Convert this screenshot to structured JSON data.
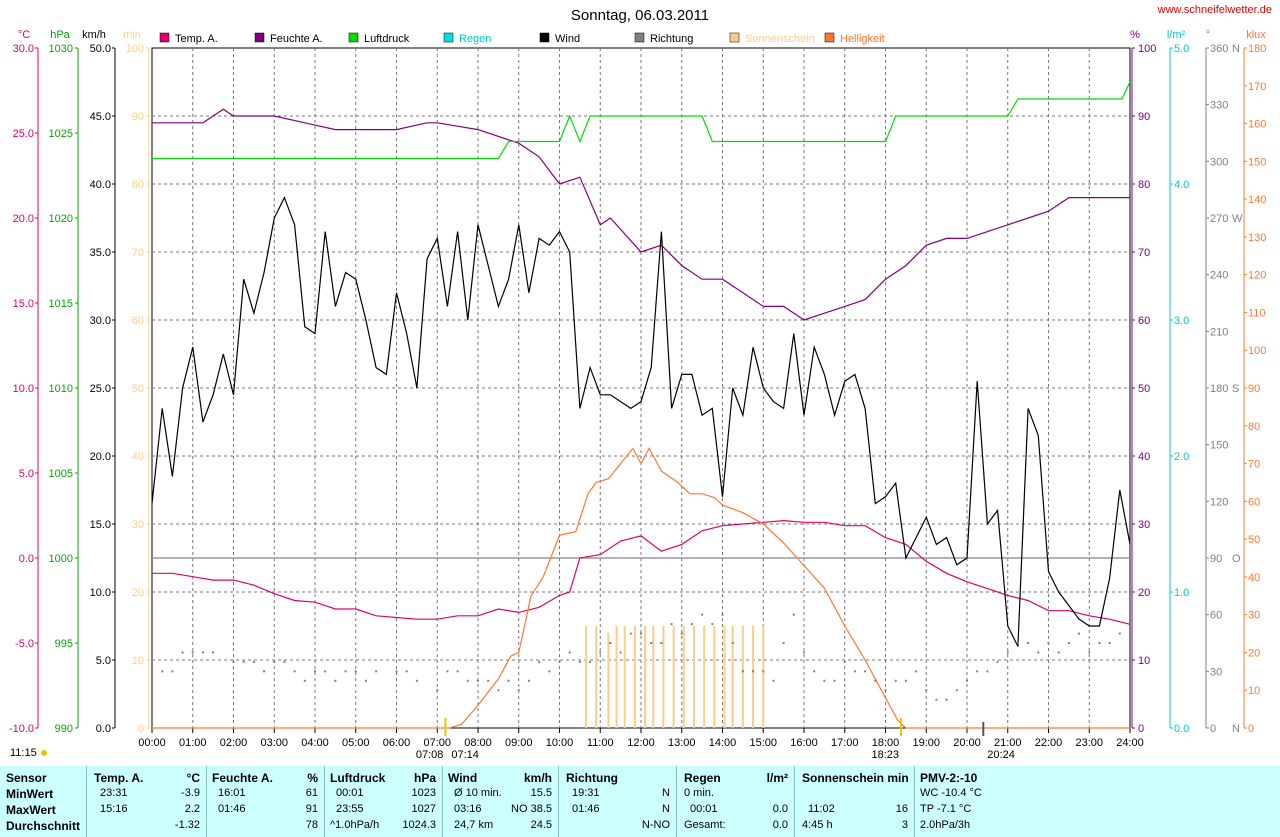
{
  "title": "Sonntag, 06.03.2011",
  "site": "www.schneifelwetter.de",
  "legend": [
    {
      "label": "Temp. A.",
      "color": "#e0006f"
    },
    {
      "label": "Feuchte A.",
      "color": "#800080"
    },
    {
      "label": "Luftdruck",
      "color": "#00dd00"
    },
    {
      "label": "Regen",
      "color": "#00e0e0"
    },
    {
      "label": "Wind",
      "color": "#000000"
    },
    {
      "label": "Richtung",
      "color": "#808080"
    },
    {
      "label": "Sonnenschein",
      "color": "#ffcc88"
    },
    {
      "label": "Helligkeit",
      "color": "#ff7733"
    }
  ],
  "axis_units": {
    "temp": "°C",
    "pressure": "hPa",
    "wind": "km/h",
    "sun": "min",
    "humidity": "%",
    "rain": "l/m²",
    "direction": "°",
    "brightness": "klux"
  },
  "direction_labels": {
    "0": "N",
    "90": "O",
    "180": "S",
    "270": "W",
    "360": "N"
  },
  "sunrise_label": "07:08",
  "sunrise_label2": "07:14",
  "sunset_label": "18:23",
  "moonset_label": "20:24",
  "moon_time_label": "11:15",
  "chart_data": {
    "type": "line",
    "x_ticks": [
      "00:00",
      "01:00",
      "02:00",
      "03:00",
      "04:00",
      "05:00",
      "06:00",
      "07:00",
      "08:00",
      "09:00",
      "10:00",
      "11:00",
      "12:00",
      "13:00",
      "14:00",
      "15:00",
      "16:00",
      "17:00",
      "18:00",
      "19:00",
      "20:00",
      "21:00",
      "22:00",
      "23:00",
      "24:00"
    ],
    "axes": {
      "temp": {
        "min": -10,
        "max": 30,
        "ticks": [
          -10.0,
          -5.0,
          0.0,
          5.0,
          10.0,
          15.0,
          20.0,
          25.0,
          30.0
        ],
        "color": "#e0006f"
      },
      "pressure": {
        "min": 990,
        "max": 1030,
        "ticks": [
          990,
          995,
          1000,
          1005,
          1010,
          1015,
          1020,
          1025,
          1030
        ],
        "color": "#00aa00"
      },
      "wind": {
        "min": 0,
        "max": 50,
        "ticks": [
          0.0,
          5.0,
          10.0,
          15.0,
          20.0,
          25.0,
          30.0,
          35.0,
          40.0,
          45.0,
          50.0
        ],
        "color": "#000000"
      },
      "sun": {
        "min": 0,
        "max": 100,
        "ticks": [
          0,
          10,
          20,
          30,
          40,
          50,
          60,
          70,
          80,
          90,
          100
        ],
        "color": "#ffcc88"
      },
      "humidity": {
        "min": 0,
        "max": 100,
        "ticks": [
          0,
          10,
          20,
          30,
          40,
          50,
          60,
          70,
          80,
          90,
          100
        ],
        "color": "#800080"
      },
      "rain": {
        "min": 0,
        "max": 5,
        "ticks": [
          0.0,
          1.0,
          2.0,
          3.0,
          4.0,
          5.0
        ],
        "color": "#00cccc"
      },
      "direction": {
        "min": 0,
        "max": 360,
        "ticks": [
          0,
          30,
          60,
          90,
          120,
          150,
          180,
          210,
          240,
          270,
          300,
          330,
          360
        ],
        "color": "#808080"
      },
      "brightness": {
        "min": 0,
        "max": 180,
        "ticks": [
          0,
          10,
          20,
          30,
          40,
          50,
          60,
          70,
          80,
          90,
          100,
          110,
          120,
          130,
          140,
          150,
          160,
          170,
          180
        ],
        "color": "#ff7733"
      }
    },
    "series": [
      {
        "name": "Temp. A.",
        "axis": "temp",
        "color": "#e0006f",
        "x": [
          0,
          0.5,
          1,
          1.5,
          2,
          2.5,
          3,
          3.5,
          4,
          4.5,
          5,
          5.5,
          6,
          6.5,
          7,
          7.5,
          8,
          8.5,
          9,
          9.5,
          10,
          10.25,
          10.5,
          11,
          11.5,
          12,
          12.5,
          13,
          13.5,
          14,
          14.5,
          15,
          15.5,
          16,
          16.5,
          17,
          17.5,
          18,
          18.5,
          19,
          19.5,
          20,
          20.5,
          21,
          21.5,
          22,
          22.5,
          23,
          23.5,
          24
        ],
        "y": [
          -0.9,
          -0.9,
          -1.1,
          -1.3,
          -1.3,
          -1.6,
          -2.1,
          -2.5,
          -2.6,
          -3.0,
          -3.0,
          -3.4,
          -3.5,
          -3.6,
          -3.6,
          -3.4,
          -3.4,
          -3.0,
          -3.2,
          -2.9,
          -2.2,
          -2.0,
          0.0,
          0.2,
          1.0,
          1.3,
          0.4,
          0.8,
          1.6,
          1.9,
          2.0,
          2.1,
          2.2,
          2.1,
          2.1,
          1.9,
          1.9,
          1.2,
          0.8,
          -0.2,
          -0.9,
          -1.4,
          -1.8,
          -2.2,
          -2.5,
          -3.1,
          -3.1,
          -3.4,
          -3.6,
          -3.9
        ]
      },
      {
        "name": "Feuchte A.",
        "axis": "humidity",
        "color": "#800080",
        "x": [
          0,
          1.25,
          1.75,
          2,
          3,
          3.75,
          4.5,
          5.5,
          6,
          6.75,
          7,
          8,
          9,
          9.5,
          10,
          10.5,
          11,
          11.25,
          12,
          12.5,
          13,
          13.5,
          14,
          14.5,
          15,
          15.5,
          16,
          16.5,
          17,
          17.5,
          18,
          18.5,
          19,
          19.5,
          20,
          21,
          22,
          22.5,
          23,
          24
        ],
        "y": [
          89,
          89,
          91,
          90,
          90,
          89,
          88,
          88,
          88,
          89,
          89,
          88,
          86,
          84,
          80,
          81,
          74,
          75,
          70,
          71,
          68,
          66,
          66,
          64,
          62,
          62,
          60,
          61,
          62,
          63,
          66,
          68,
          71,
          72,
          72,
          74,
          76,
          78,
          78,
          78
        ]
      },
      {
        "name": "Luftdruck",
        "axis": "pressure",
        "color": "#00dd00",
        "x": [
          0,
          8.5,
          8.75,
          10,
          10.25,
          10.5,
          10.75,
          13.5,
          13.75,
          18,
          18.25,
          21,
          21.25,
          23.8,
          24
        ],
        "y": [
          1023.5,
          1023.5,
          1024.5,
          1024.5,
          1026,
          1024.5,
          1026,
          1026,
          1024.5,
          1024.5,
          1026,
          1026,
          1027,
          1027,
          1028
        ]
      },
      {
        "name": "Wind",
        "axis": "wind",
        "color": "#000000",
        "x": [
          0,
          0.25,
          0.5,
          0.75,
          1,
          1.25,
          1.5,
          1.75,
          2,
          2.25,
          2.5,
          2.75,
          3,
          3.25,
          3.5,
          3.75,
          4,
          4.25,
          4.5,
          4.75,
          5,
          5.25,
          5.5,
          5.75,
          6,
          6.25,
          6.5,
          6.75,
          7,
          7.25,
          7.5,
          7.75,
          8,
          8.25,
          8.5,
          8.75,
          9,
          9.25,
          9.5,
          9.75,
          10,
          10.25,
          10.5,
          10.75,
          11,
          11.25,
          11.5,
          11.75,
          12,
          12.25,
          12.5,
          12.75,
          13,
          13.25,
          13.5,
          13.75,
          14,
          14.25,
          14.5,
          14.75,
          15,
          15.25,
          15.5,
          15.75,
          16,
          16.25,
          16.5,
          16.75,
          17,
          17.25,
          17.5,
          17.75,
          18,
          18.25,
          18.5,
          18.75,
          19,
          19.25,
          19.5,
          19.75,
          20,
          20.25,
          20.5,
          20.75,
          21,
          21.25,
          21.5,
          21.75,
          22,
          22.25,
          22.5,
          22.75,
          23,
          23.25,
          23.5,
          23.75,
          24
        ],
        "y": [
          16.5,
          23.5,
          18.5,
          25,
          28,
          22.5,
          24.5,
          27.5,
          24.5,
          33,
          30.5,
          33.5,
          37.5,
          39,
          37,
          29.5,
          29,
          36.5,
          31,
          33.5,
          33,
          30,
          26.5,
          26,
          32,
          29,
          25,
          34.5,
          36,
          31,
          36.5,
          30,
          37,
          34,
          31,
          33,
          37,
          32,
          36,
          35.5,
          36.5,
          35,
          23.5,
          26.5,
          24.5,
          24.5,
          24,
          23.5,
          24,
          26.5,
          36.5,
          23.5,
          26,
          26,
          23,
          23.5,
          17,
          25,
          23,
          28,
          25,
          24,
          23.5,
          29,
          23,
          28,
          26,
          23,
          25.5,
          26,
          23.5,
          16.5,
          17,
          18,
          12.5,
          14,
          15.5,
          13.5,
          14,
          12,
          12.5,
          25.5,
          15,
          16,
          7.5,
          6,
          23.5,
          21.5,
          11.5,
          10,
          9,
          8,
          7.5,
          7.5,
          11,
          17.5,
          13.5
        ]
      },
      {
        "name": "Helligkeit",
        "axis": "brightness",
        "color": "#ff7733",
        "x": [
          0,
          7.3,
          7.6,
          8,
          8.5,
          8.8,
          9,
          9.3,
          9.6,
          10,
          10.4,
          10.7,
          10.9,
          11.2,
          11.5,
          11.8,
          12,
          12.2,
          12.5,
          12.9,
          13.2,
          13.5,
          13.8,
          14,
          14.5,
          15,
          15.5,
          16,
          16.5,
          17,
          17.5,
          18,
          18.3,
          18.5,
          18.8,
          24
        ],
        "y": [
          0,
          0,
          1,
          6,
          13,
          19,
          20,
          35,
          40,
          51,
          52,
          62,
          65,
          66,
          70,
          74,
          70,
          74,
          68,
          65,
          62,
          62,
          61,
          59,
          57,
          54,
          49,
          43,
          37,
          27,
          18,
          8,
          2,
          0,
          0,
          0
        ]
      },
      {
        "name": "Sonnenschein",
        "axis": "sun",
        "color": "#ffcc88",
        "x": [
          10.65,
          10.9,
          11.2,
          11.4,
          11.6,
          11.85,
          12.1,
          12.3,
          12.55,
          12.8,
          13.05,
          13.3,
          13.55,
          13.8,
          14.05,
          14.25,
          14.5,
          14.75,
          15
        ],
        "y": [
          15,
          15,
          14,
          15,
          15,
          15,
          15,
          15,
          15,
          15,
          15,
          15,
          15,
          15,
          15,
          15,
          15,
          15,
          15
        ]
      },
      {
        "name": "Richtung",
        "axis": "direction",
        "color": "#808080",
        "x": [
          0.25,
          0.5,
          0.75,
          1,
          1.25,
          1.5,
          2,
          2.25,
          2.5,
          2.75,
          3,
          3.25,
          3.5,
          3.75,
          4,
          4.25,
          4.5,
          4.75,
          5,
          5.25,
          5.5,
          6,
          6.25,
          6.5,
          7,
          7.25,
          7.5,
          7.75,
          8,
          8.25,
          8.5,
          8.75,
          9,
          9.25,
          9.5,
          9.75,
          10,
          10.25,
          10.5,
          10.75,
          11,
          11.25,
          11.5,
          11.75,
          12,
          12.25,
          12.5,
          12.75,
          13,
          13.25,
          13.5,
          13.75,
          14,
          14.25,
          14.5,
          14.75,
          15,
          15.25,
          15.5,
          15.75,
          16,
          16.25,
          16.5,
          16.75,
          17,
          17.25,
          17.5,
          17.75,
          18,
          18.25,
          18.5,
          18.75,
          19,
          19.25,
          19.5,
          19.75,
          20,
          20.25,
          20.5,
          20.75,
          21,
          21.25,
          21.5,
          21.75,
          22,
          22.25,
          22.5,
          22.75,
          23,
          23.25,
          23.5,
          23.75,
          24
        ],
        "y": [
          30,
          30,
          40,
          40,
          40,
          40,
          35,
          35,
          35,
          30,
          35,
          35,
          30,
          25,
          30,
          30,
          25,
          30,
          30,
          25,
          30,
          30,
          30,
          25,
          20,
          30,
          30,
          25,
          25,
          25,
          20,
          25,
          20,
          25,
          35,
          30,
          35,
          40,
          35,
          35,
          40,
          45,
          40,
          50,
          50,
          45,
          45,
          55,
          50,
          55,
          60,
          55,
          60,
          45,
          30,
          30,
          30,
          25,
          45,
          60,
          40,
          30,
          25,
          25,
          35,
          30,
          30,
          25,
          20,
          25,
          25,
          30,
          20,
          15,
          15,
          20,
          25,
          30,
          30,
          35,
          40,
          45,
          45,
          40,
          45,
          40,
          45,
          50,
          40,
          45,
          45,
          50,
          60
        ]
      }
    ],
    "hline": {
      "axis": "temp",
      "value": 0
    }
  },
  "table": {
    "rows": [
      "Sensor",
      "MinWert",
      "MaxWert",
      "Durchschnitt"
    ],
    "temp": {
      "header": "Temp. A.",
      "unit": "°C",
      "min_time": "23:31",
      "min": "-3.9",
      "max_time": "15:16",
      "max": "2.2",
      "avg": "-1.32"
    },
    "hum": {
      "header": "Feuchte A.",
      "unit": "%",
      "min_time": "16:01",
      "min": "61",
      "max_time": "01:46",
      "max": "91",
      "avg": "78"
    },
    "press": {
      "header": "Luftdruck",
      "unit": "hPa",
      "min_time": "00:01",
      "min": "1023",
      "max_time": "23:55",
      "max": "1027",
      "trend": "^1.0hPa/h",
      "avg": "1024.3"
    },
    "wind": {
      "header": "Wind",
      "unit": "km/h",
      "min_label": "Ø 10 min.",
      "min": "15.5",
      "max_time": "03:16",
      "max": "NO 38.5",
      "dist": "24,7 km",
      "avg": "24.5"
    },
    "dir": {
      "header": "Richtung",
      "min_time": "19:31",
      "min": "N",
      "max_time": "01:46",
      "max": "N",
      "avg": "N-NO"
    },
    "rain": {
      "header": "Regen",
      "unit": "l/m²",
      "min_label": "0 min.",
      "max_time": "00:01",
      "max": "0.0",
      "total_label": "Gesamt:",
      "total": "0.0"
    },
    "sun": {
      "header": "Sonnenschein min",
      "max_time": "11:02",
      "max": "16",
      "total_time": "4:45 h",
      "total": "3"
    },
    "pmv": {
      "header": "PMV-2:-10",
      "wc": "WC -10.4 °C",
      "tp": "TP -7.1 °C",
      "trend": "2.0hPa/3h"
    }
  }
}
